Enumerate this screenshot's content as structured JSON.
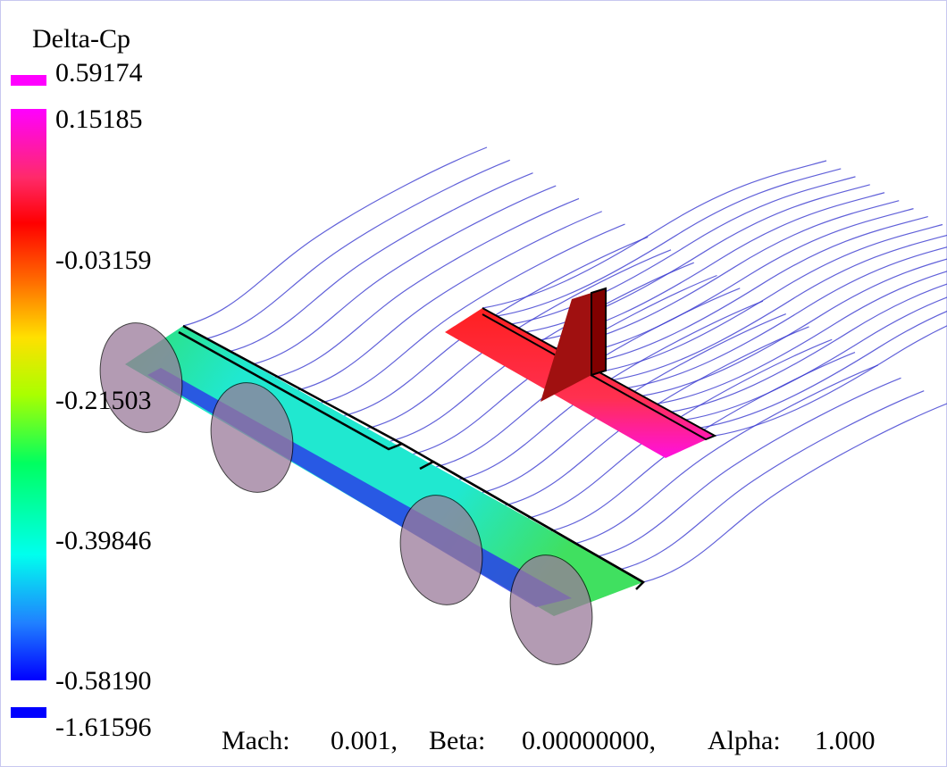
{
  "legend": {
    "title": "Delta-Cp",
    "labels": [
      "0.59174",
      "0.15185",
      "-0.03159",
      "-0.21503",
      "-0.39846",
      "-0.58190",
      "-1.61596"
    ]
  },
  "footer": {
    "mach_label": "Mach:",
    "mach": "0.001,",
    "beta_label": "Beta:",
    "beta": "0.00000000,",
    "alpha_label": "Alpha:",
    "alpha": "1.000"
  }
}
